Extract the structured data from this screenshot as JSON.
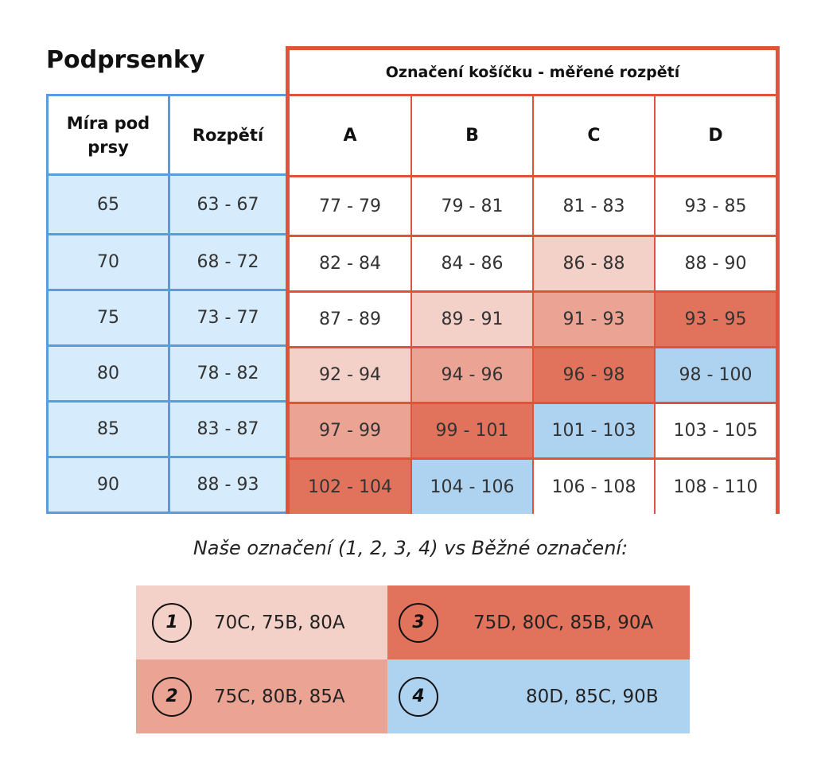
{
  "title": "Podprsenky",
  "left_headers": [
    "Míra pod prsy",
    "Rozpětí"
  ],
  "right_header": "Označení košíčku - měřené rozpětí",
  "cup_headers": [
    "A",
    "B",
    "C",
    "D"
  ],
  "rows": [
    {
      "underbust": "65",
      "range": "63 - 67",
      "cups": [
        "77 - 79",
        "79 - 81",
        "81 - 83",
        "93 - 85"
      ]
    },
    {
      "underbust": "70",
      "range": "68 - 72",
      "cups": [
        "82 - 84",
        "84 - 86",
        "86 - 88",
        "88 - 90"
      ]
    },
    {
      "underbust": "75",
      "range": "73 - 77",
      "cups": [
        "87 - 89",
        "89 - 91",
        "91 - 93",
        "93 - 95"
      ]
    },
    {
      "underbust": "80",
      "range": "78 - 82",
      "cups": [
        "92 - 94",
        "94 - 96",
        "96 - 98",
        "98 - 100"
      ]
    },
    {
      "underbust": "85",
      "range": "83 - 87",
      "cups": [
        "97 - 99",
        "99 - 101",
        "101 - 103",
        "103 - 105"
      ]
    },
    {
      "underbust": "90",
      "range": "88 - 93",
      "cups": [
        "102 - 104",
        "104 - 106",
        "106 - 108",
        "108 - 110"
      ]
    }
  ],
  "cup_group_map": [
    [
      0,
      0,
      0,
      0
    ],
    [
      0,
      0,
      1,
      0
    ],
    [
      0,
      1,
      2,
      3
    ],
    [
      1,
      2,
      3,
      4
    ],
    [
      2,
      3,
      4,
      0
    ],
    [
      3,
      4,
      0,
      0
    ]
  ],
  "colors": {
    "group_1": "#f4d1c8",
    "group_2": "#eba493",
    "group_3": "#e1735c",
    "group_4": "#aed3f0",
    "left_body": "#d6ebfb",
    "blue_border": "#5b9be0",
    "red_border": "#e0533a"
  },
  "legend_caption": "Naše označení (1, 2, 3, 4) vs Běžné označení:",
  "legend": [
    {
      "num": "1",
      "sizes": "70C, 75B, 80A"
    },
    {
      "num": "3",
      "sizes": "75D, 80C, 85B, 90A"
    },
    {
      "num": "2",
      "sizes": "75C, 80B, 85A"
    },
    {
      "num": "4",
      "sizes": "80D, 85C, 90B"
    }
  ]
}
